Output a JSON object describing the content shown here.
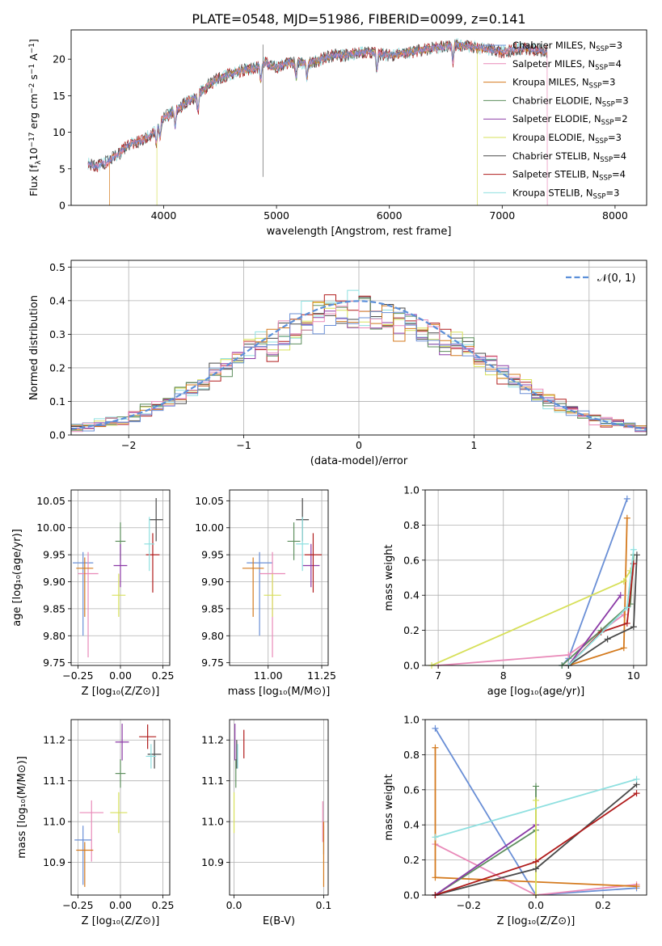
{
  "figure_title": "PLATE=0548, MJD=51986, FIBERID=0099, z=0.141",
  "colors": {
    "chabrier_miles": "#6a8fd6",
    "salpeter_miles": "#e98ab9",
    "kroupa_miles": "#d47a1e",
    "chabrier_elodie": "#5e8f5e",
    "salpeter_elodie": "#8b3aa6",
    "kroupa_elodie": "#d7e05a",
    "chabrier_stelib": "#4a4a4a",
    "salpeter_stelib": "#b01c1c",
    "kroupa_stelib": "#8fe0e0",
    "gauss": "#5b8fd9"
  },
  "legend_labels": {
    "chabrier_miles": "Chabrier MILES, N",
    "salpeter_miles": "Salpeter MILES, N",
    "kroupa_miles": "Kroupa MILES, N",
    "chabrier_elodie": "Chabrier ELODIE, N",
    "salpeter_elodie": "Salpeter ELODIE, N",
    "kroupa_elodie": "Kroupa ELODIE, N",
    "chabrier_stelib": "Chabrier STELIB, N",
    "salpeter_stelib": "Salpeter STELIB, N",
    "kroupa_stelib": "Kroupa STELIB, N",
    "subscript": "SSP",
    "nssp_values": [
      "=3",
      "=4",
      "=3",
      "=3",
      "=2",
      "=3",
      "=4",
      "=4",
      "=3"
    ],
    "gauss": "𝒩(0, 1)"
  },
  "axes_text": {
    "spec_xlabel": "wavelength [Angstrom, rest frame]",
    "spec_ylabel_main": "Flux [f",
    "spec_ylabel_sub": "λ",
    "spec_ylabel_rest": "10",
    "spec_ylabel_exp": "−17",
    "spec_ylabel_units": " erg cm",
    "spec_ylabel_units_exp": "−2",
    "spec_ylabel_units2": " s",
    "spec_ylabel_units2_exp": "−1",
    "spec_ylabel_units3": " A",
    "spec_ylabel_units3_exp": "−1",
    "spec_ylabel_close": "]",
    "hist_xlabel": "(data-model)/error",
    "hist_ylabel": "Normed distribution",
    "age_ylabel": "age  [log₁₀(age/yr)]",
    "z_xlabel": "Z [log₁₀(Z/Z⊙)]",
    "mass_xlabel": "mass [log₁₀(M/M⊙)]",
    "mw_ylabel": "mass weight",
    "age_xlabel": "age  [log₁₀(age/yr)]",
    "mass_ylabel": "mass [log₁₀(M/M⊙)]",
    "ebv_xlabel": "E(B-V)",
    "z2_xlabel": "Z [log₁₀(Z/Z⊙)]",
    "mw2_ylabel": "mass weight"
  },
  "chart_data": [
    {
      "id": "spectrum",
      "type": "line",
      "title": "PLATE=0548, MJD=51986, FIBERID=0099, z=0.141",
      "xlabel": "wavelength [Angstrom, rest frame]",
      "ylabel": "Flux [fλ 10^-17 erg cm^-2 s^-1 A^-1]",
      "xlim": [
        3180,
        8280
      ],
      "ylim": [
        0,
        24
      ],
      "xticks": [
        4000,
        5000,
        6000,
        7000,
        8000
      ],
      "yticks": [
        0,
        5,
        10,
        15,
        20
      ],
      "data_range": [
        3330,
        7400
      ],
      "continuum": {
        "x": [
          3330,
          3400,
          3500,
          3600,
          3700,
          3800,
          3900,
          4000,
          4100,
          4200,
          4300,
          4400,
          4500,
          4600,
          4700,
          4800,
          4900,
          5000,
          5100,
          5200,
          5300,
          5400,
          5500,
          5600,
          5800,
          6000,
          6200,
          6400,
          6600,
          6800,
          7000,
          7200,
          7400
        ],
        "y": [
          5.8,
          5.3,
          6.0,
          7.0,
          8.5,
          8.8,
          9.8,
          12.0,
          13.0,
          14.0,
          15.0,
          16.5,
          17.5,
          18.0,
          18.5,
          18.7,
          19.5,
          18.8,
          19.5,
          19.5,
          19.5,
          20.0,
          20.5,
          20.5,
          21.0,
          20.5,
          21.0,
          21.5,
          22.0,
          21.5,
          21.0,
          21.5,
          21.0
        ]
      },
      "dips": [
        3934,
        3968,
        4102,
        4304,
        4861,
        5175,
        5270,
        5890,
        6563
      ],
      "spike": 4880,
      "model_cutoffs_low": [
        3520,
        3940
      ],
      "model_cutoffs_high": [
        6780,
        7400
      ],
      "legend": [
        "Chabrier MILES, NSSP=3",
        "Salpeter MILES, NSSP=4",
        "Kroupa MILES, NSSP=3",
        "Chabrier ELODIE, NSSP=3",
        "Salpeter ELODIE, NSSP=2",
        "Kroupa ELODIE, NSSP=3",
        "Chabrier STELIB, NSSP=4",
        "Salpeter STELIB, NSSP=4",
        "Kroupa STELIB, NSSP=3"
      ]
    },
    {
      "id": "residual-hist",
      "type": "line",
      "xlabel": "(data-model)/error",
      "ylabel": "Normed distribution",
      "xlim": [
        -2.5,
        2.5
      ],
      "ylim": [
        0,
        0.52
      ],
      "xticks": [
        -2,
        -1,
        0,
        1,
        2
      ],
      "yticks": [
        0.0,
        0.1,
        0.2,
        0.3,
        0.4,
        0.5
      ],
      "bin_width": 0.1,
      "series": [
        {
          "name": "Normal",
          "type": "dashed",
          "mu": 0,
          "sigma": 1
        }
      ],
      "legend": [
        "𝒩(0, 1)"
      ],
      "grid": true
    },
    {
      "id": "age-vs-z",
      "type": "scatter",
      "xlim": [
        -0.29,
        0.29
      ],
      "ylim": [
        9.745,
        10.07
      ],
      "xticks": [
        -0.25,
        0.0,
        0.25
      ],
      "yticks": [
        9.75,
        9.8,
        9.85,
        9.9,
        9.95,
        10.0,
        10.05
      ],
      "points": [
        {
          "model": "chabrier_miles",
          "x": -0.22,
          "xerr": 0.06,
          "y": 9.935,
          "yerr": 0.02,
          "yerr_lo": 0.135
        },
        {
          "model": "salpeter_miles",
          "x": -0.19,
          "xerr": 0.06,
          "y": 9.915,
          "yerr": 0.04,
          "yerr_lo": 0.155
        },
        {
          "model": "kroupa_miles",
          "x": -0.21,
          "xerr": 0.05,
          "y": 9.925,
          "yerr": 0.02,
          "yerr_lo": 0.09
        },
        {
          "model": "chabrier_elodie",
          "x": 0.0,
          "xerr": 0.03,
          "y": 9.975,
          "yerr": 0.035
        },
        {
          "model": "salpeter_elodie",
          "x": 0.0,
          "xerr": 0.04,
          "y": 9.93,
          "yerr": 0.04
        },
        {
          "model": "kroupa_elodie",
          "x": -0.01,
          "xerr": 0.04,
          "y": 9.875,
          "yerr": 0.04
        },
        {
          "model": "chabrier_stelib",
          "x": 0.21,
          "xerr": 0.04,
          "y": 10.015,
          "yerr": 0.04
        },
        {
          "model": "salpeter_stelib",
          "x": 0.19,
          "xerr": 0.04,
          "y": 9.95,
          "yerr": 0.04,
          "yerr_lo": 0.07
        },
        {
          "model": "kroupa_stelib",
          "x": 0.17,
          "xerr": 0.03,
          "y": 9.97,
          "yerr": 0.05
        }
      ]
    },
    {
      "id": "age-vs-mass",
      "type": "scatter",
      "xlim": [
        10.82,
        11.28
      ],
      "ylim": [
        9.745,
        10.07
      ],
      "xticks": [
        11.0,
        11.25
      ],
      "yticks": [
        9.75,
        9.8,
        9.85,
        9.9,
        9.95,
        10.0,
        10.05
      ],
      "points": [
        {
          "model": "chabrier_miles",
          "x": 10.96,
          "xerr": 0.06,
          "y": 9.935,
          "yerr": 0.02,
          "yerr_lo": 0.135
        },
        {
          "model": "salpeter_miles",
          "x": 11.02,
          "xerr": 0.06,
          "y": 9.915,
          "yerr": 0.04,
          "yerr_lo": 0.155
        },
        {
          "model": "kroupa_miles",
          "x": 10.93,
          "xerr": 0.05,
          "y": 9.925,
          "yerr": 0.02,
          "yerr_lo": 0.09
        },
        {
          "model": "chabrier_elodie",
          "x": 11.12,
          "xerr": 0.03,
          "y": 9.975,
          "yerr": 0.035
        },
        {
          "model": "salpeter_elodie",
          "x": 11.2,
          "xerr": 0.04,
          "y": 9.93,
          "yerr": 0.04
        },
        {
          "model": "kroupa_elodie",
          "x": 11.02,
          "xerr": 0.04,
          "y": 9.875,
          "yerr": 0.04
        },
        {
          "model": "chabrier_stelib",
          "x": 11.16,
          "xerr": 0.03,
          "y": 10.015,
          "yerr": 0.04
        },
        {
          "model": "salpeter_stelib",
          "x": 11.21,
          "xerr": 0.04,
          "y": 9.95,
          "yerr": 0.04,
          "yerr_lo": 0.07
        },
        {
          "model": "kroupa_stelib",
          "x": 11.16,
          "xerr": 0.03,
          "y": 9.97,
          "yerr": 0.05
        }
      ]
    },
    {
      "id": "mass-weight-vs-age",
      "type": "line",
      "xlim": [
        6.8,
        10.2
      ],
      "ylim": [
        0,
        1
      ],
      "xticks": [
        7,
        8,
        9,
        10
      ],
      "yticks": [
        0.0,
        0.2,
        0.4,
        0.6,
        0.8,
        1.0
      ],
      "series": [
        {
          "model": "chabrier_miles",
          "x": [
            8.9,
            9.0,
            9.9
          ],
          "y": [
            0.0,
            0.04,
            0.95
          ]
        },
        {
          "model": "salpeter_miles",
          "x": [
            7.0,
            9.0,
            9.85
          ],
          "y": [
            0.0,
            0.06,
            0.29
          ]
        },
        {
          "model": "kroupa_miles",
          "x": [
            9.0,
            9.85,
            9.9
          ],
          "y": [
            0.0,
            0.1,
            0.84
          ]
        },
        {
          "model": "chabrier_elodie",
          "x": [
            8.9,
            9.5,
            9.95,
            10.0
          ],
          "y": [
            0.0,
            0.2,
            0.35,
            0.63
          ]
        },
        {
          "model": "salpeter_elodie",
          "x": [
            9.0,
            9.8
          ],
          "y": [
            0.0,
            0.4
          ]
        },
        {
          "model": "kroupa_elodie",
          "x": [
            6.9,
            9.85,
            9.95
          ],
          "y": [
            0.0,
            0.48,
            0.54
          ]
        },
        {
          "model": "chabrier_stelib",
          "x": [
            9.0,
            9.6,
            10.0,
            10.05
          ],
          "y": [
            0.0,
            0.15,
            0.22,
            0.63
          ]
        },
        {
          "model": "salpeter_stelib",
          "x": [
            9.0,
            9.5,
            9.9,
            10.0
          ],
          "y": [
            0.0,
            0.19,
            0.24,
            0.58
          ]
        },
        {
          "model": "kroupa_stelib",
          "x": [
            9.0,
            9.9,
            10.0
          ],
          "y": [
            0.0,
            0.33,
            0.66
          ]
        }
      ]
    },
    {
      "id": "mass-vs-z",
      "type": "scatter",
      "xlim": [
        -0.29,
        0.29
      ],
      "ylim": [
        10.82,
        11.25
      ],
      "xticks": [
        -0.25,
        0.0,
        0.25
      ],
      "yticks": [
        10.9,
        11.0,
        11.1,
        11.2
      ],
      "points": [
        {
          "model": "chabrier_miles",
          "x": -0.22,
          "xerr": 0.05,
          "y": 10.955,
          "yerr": 0.035,
          "yerr_lo": 0.11
        },
        {
          "model": "salpeter_miles",
          "x": -0.17,
          "xerr": 0.07,
          "y": 11.022,
          "yerr": 0.03,
          "yerr_lo": 0.12
        },
        {
          "model": "kroupa_miles",
          "x": -0.21,
          "xerr": 0.05,
          "y": 10.93,
          "yerr": 0.02,
          "yerr_lo": 0.09
        },
        {
          "model": "chabrier_elodie",
          "x": 0.0,
          "xerr": 0.03,
          "y": 11.118,
          "yerr": 0.035
        },
        {
          "model": "salpeter_elodie",
          "x": 0.01,
          "xerr": 0.04,
          "y": 11.195,
          "yerr": 0.045
        },
        {
          "model": "kroupa_elodie",
          "x": -0.01,
          "xerr": 0.05,
          "y": 11.022,
          "yerr": 0.05
        },
        {
          "model": "chabrier_stelib",
          "x": 0.2,
          "xerr": 0.04,
          "y": 11.165,
          "yerr": 0.035
        },
        {
          "model": "salpeter_stelib",
          "x": 0.16,
          "xerr": 0.05,
          "y": 11.208,
          "yerr": 0.03
        },
        {
          "model": "kroupa_stelib",
          "x": 0.18,
          "xerr": 0.03,
          "y": 11.16,
          "yerr": 0.03
        }
      ]
    },
    {
      "id": "mass-vs-ebv",
      "type": "scatter",
      "xlim": [
        -0.005,
        0.105
      ],
      "ylim": [
        10.82,
        11.25
      ],
      "xticks": [
        0.0,
        0.1
      ],
      "yticks": [
        10.9,
        11.0,
        11.1,
        11.2
      ],
      "points": [
        {
          "model": "chabrier_miles",
          "x": 0.1,
          "y": 10.955,
          "yerr": 0.035
        },
        {
          "model": "salpeter_miles",
          "x": 0.099,
          "y": 11.0,
          "yerr": 0.05
        },
        {
          "model": "kroupa_miles",
          "x": 0.1,
          "y": 10.92,
          "yerr": 0.08
        },
        {
          "model": "chabrier_elodie",
          "x": 0.002,
          "y": 11.118,
          "yerr": 0.035
        },
        {
          "model": "salpeter_elodie",
          "x": 0.001,
          "y": 11.195,
          "yerr": 0.045
        },
        {
          "model": "kroupa_elodie",
          "x": 0.0,
          "y": 11.022,
          "yerr": 0.05
        },
        {
          "model": "chabrier_stelib",
          "x": 0.003,
          "y": 11.165,
          "yerr": 0.035
        },
        {
          "model": "salpeter_stelib",
          "x": 0.011,
          "y": 11.19,
          "yerr": 0.035
        },
        {
          "model": "kroupa_stelib",
          "x": 0.004,
          "y": 11.16,
          "yerr": 0.03
        }
      ]
    },
    {
      "id": "mass-weight-vs-z",
      "type": "line",
      "xlim": [
        -0.33,
        0.33
      ],
      "ylim": [
        0,
        1
      ],
      "xticks": [
        -0.2,
        0.0,
        0.2
      ],
      "yticks": [
        0.0,
        0.2,
        0.4,
        0.6,
        0.8,
        1.0
      ],
      "series": [
        {
          "model": "chabrier_miles",
          "x": [
            -0.3,
            0.0,
            0.3
          ],
          "y": [
            0.95,
            0.0,
            0.04
          ]
        },
        {
          "model": "salpeter_miles",
          "x": [
            -0.3,
            0.0,
            0.3
          ],
          "y": [
            0.29,
            0.0,
            0.06
          ]
        },
        {
          "model": "kroupa_miles",
          "x": [
            -0.3,
            -0.3,
            0.3
          ],
          "y": [
            0.84,
            0.1,
            0.05
          ]
        },
        {
          "model": "chabrier_elodie",
          "x": [
            -0.3,
            0.0,
            0.0
          ],
          "y": [
            0.0,
            0.37,
            0.62
          ]
        },
        {
          "model": "salpeter_elodie",
          "x": [
            -0.3,
            0.0
          ],
          "y": [
            0.0,
            0.4
          ]
        },
        {
          "model": "kroupa_elodie",
          "x": [
            0.0,
            0.0
          ],
          "y": [
            0.0,
            0.54
          ]
        },
        {
          "model": "chabrier_stelib",
          "x": [
            -0.3,
            0.0,
            0.3
          ],
          "y": [
            0.0,
            0.15,
            0.63
          ]
        },
        {
          "model": "salpeter_stelib",
          "x": [
            -0.3,
            0.0,
            0.3
          ],
          "y": [
            0.0,
            0.19,
            0.58
          ]
        },
        {
          "model": "kroupa_stelib",
          "x": [
            -0.3,
            0.3
          ],
          "y": [
            0.33,
            0.66
          ]
        }
      ]
    }
  ]
}
